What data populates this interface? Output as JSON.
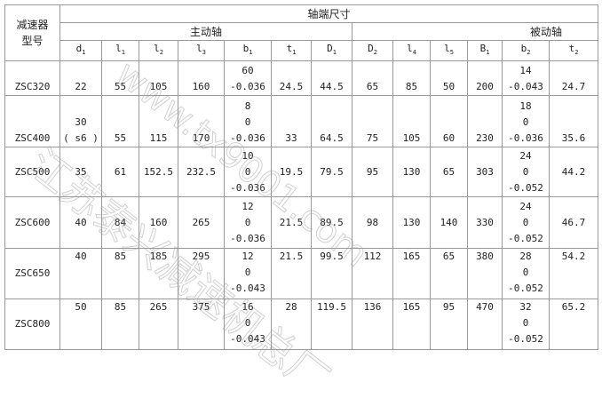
{
  "headers": {
    "model": "减速器\n型号",
    "shaft_dims": "轴端尺寸",
    "driving_shaft": "主动轴",
    "driven_shaft": "被动轴",
    "columns": [
      {
        "sym": "d",
        "sub": "1"
      },
      {
        "sym": "l",
        "sub": "1"
      },
      {
        "sym": "l",
        "sub": "2"
      },
      {
        "sym": "l",
        "sub": "3"
      },
      {
        "sym": "b",
        "sub": "1"
      },
      {
        "sym": "t",
        "sub": "1"
      },
      {
        "sym": "D",
        "sub": "1"
      },
      {
        "sym": "D",
        "sub": "2"
      },
      {
        "sym": "l",
        "sub": "4"
      },
      {
        "sym": "l",
        "sub": "5"
      },
      {
        "sym": "B",
        "sub": "1"
      },
      {
        "sym": "b",
        "sub": "2"
      },
      {
        "sym": "t",
        "sub": "2"
      }
    ]
  },
  "rows": [
    {
      "model": "ZSC320",
      "cells": [
        "22",
        "55",
        "105",
        "160",
        "60\n-0.036",
        "24.5",
        "44.5",
        "65",
        "85",
        "50",
        "200",
        "14\n-0.043",
        "24.7"
      ]
    },
    {
      "model": "ZSC400",
      "cells": [
        "30\n( s6 )",
        "55",
        "115",
        "170",
        "8\n0\n-0.036",
        "33",
        "64.5",
        "75",
        "105",
        "60",
        "230",
        "18\n0\n-0.036",
        "35.6"
      ]
    },
    {
      "model": "ZSC500",
      "cells": [
        "35",
        "61",
        "152.5",
        "232.5",
        "10\n0\n-0.036",
        "19.5",
        "79.5",
        "95",
        "130",
        "65",
        "303",
        "24\n0\n-0.052",
        "44.2"
      ]
    },
    {
      "model": "ZSC600",
      "cells": [
        "40",
        "84",
        "160",
        "265",
        "12\n0\n-0.036",
        "21.5",
        "89.5",
        "98",
        "130",
        "140",
        "330",
        "24\n0\n-0.052",
        "46.7"
      ]
    },
    {
      "model": "ZSC650",
      "cells": [
        "40",
        "85",
        "185",
        "295",
        "12\n0\n-0.043",
        "21.5",
        "99.5",
        "112",
        "165",
        "65",
        "380",
        "28\n0\n-0.052",
        "54.2"
      ]
    },
    {
      "model": "ZSC800",
      "cells": [
        "50",
        "85",
        "265",
        "375",
        "16\n0\n-0.043",
        "28",
        "119.5",
        "136",
        "165",
        "95",
        "470",
        "32\n0\n-0.052",
        "65.2"
      ]
    }
  ],
  "watermark": {
    "text1": "江苏泰兴减速机总厂",
    "text2": "www.tx9001.com"
  }
}
